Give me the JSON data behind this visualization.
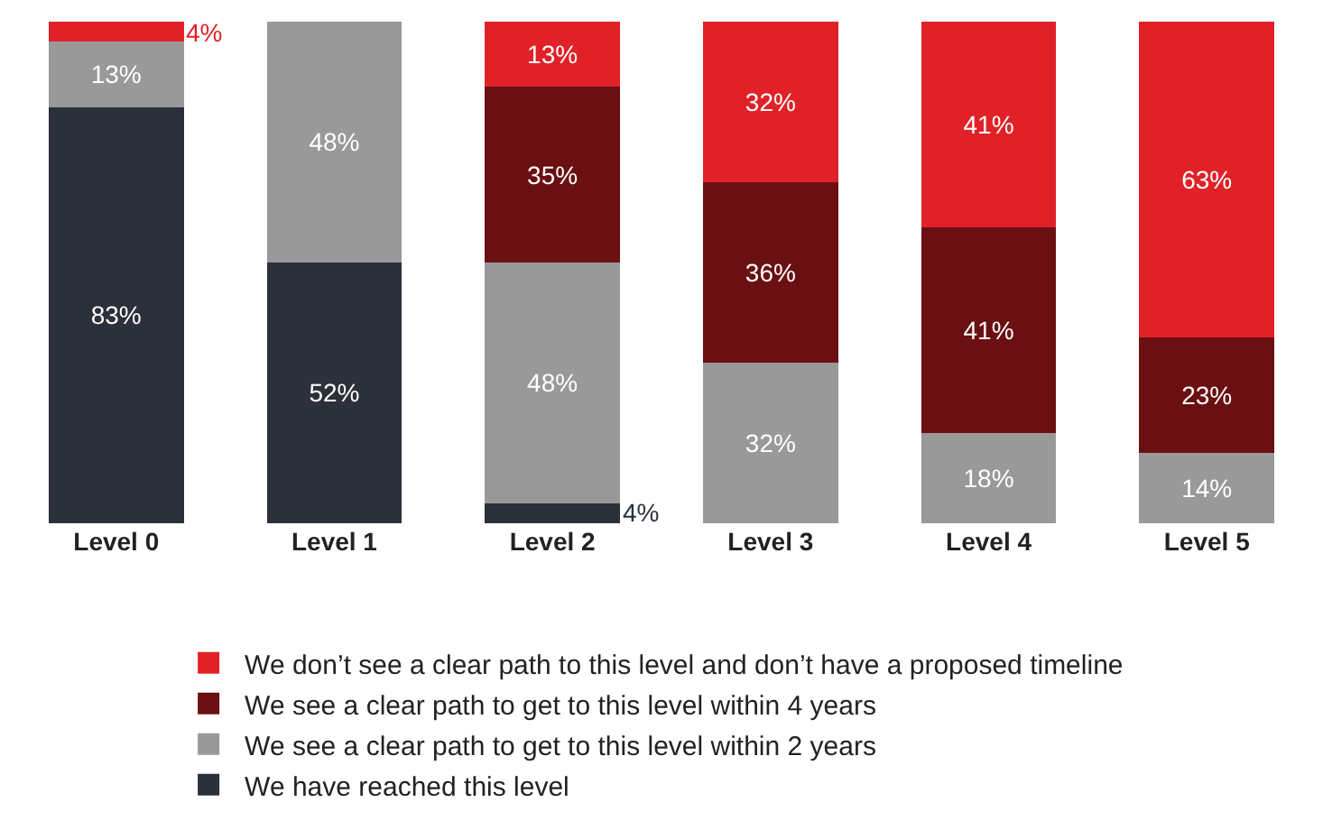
{
  "chart_data": {
    "type": "bar",
    "stacked": true,
    "categories": [
      "Level 0",
      "Level 1",
      "Level 2",
      "Level 3",
      "Level 4",
      "Level 5"
    ],
    "ylim": [
      0,
      100
    ],
    "tick_labels": "x",
    "legend": "bottom",
    "series": [
      {
        "name": "We have reached this level",
        "color": "#2b303a",
        "values": [
          83,
          52,
          4,
          0,
          0,
          0
        ],
        "value_labels": [
          "83%",
          "52%",
          "4%",
          null,
          null,
          null
        ]
      },
      {
        "name": "We see a clear path to get to this level within 2 years",
        "color": "#999999",
        "values": [
          13,
          48,
          48,
          32,
          18,
          14
        ],
        "value_labels": [
          "13%",
          "48%",
          "48%",
          "32%",
          "18%",
          "14%"
        ]
      },
      {
        "name": "We see a clear path to get to this level within 4 years",
        "color": "#6b1012",
        "values": [
          0,
          0,
          35,
          36,
          41,
          23
        ],
        "value_labels": [
          null,
          null,
          "35%",
          "36%",
          "41%",
          "23%"
        ]
      },
      {
        "name": "We don’t see a clear path to this level and don’t have a proposed timeline",
        "color": "#e02228",
        "values": [
          4,
          0,
          13,
          32,
          41,
          63
        ],
        "value_labels": [
          "4%",
          null,
          "13%",
          "32%",
          "41%",
          "63%"
        ]
      }
    ]
  }
}
